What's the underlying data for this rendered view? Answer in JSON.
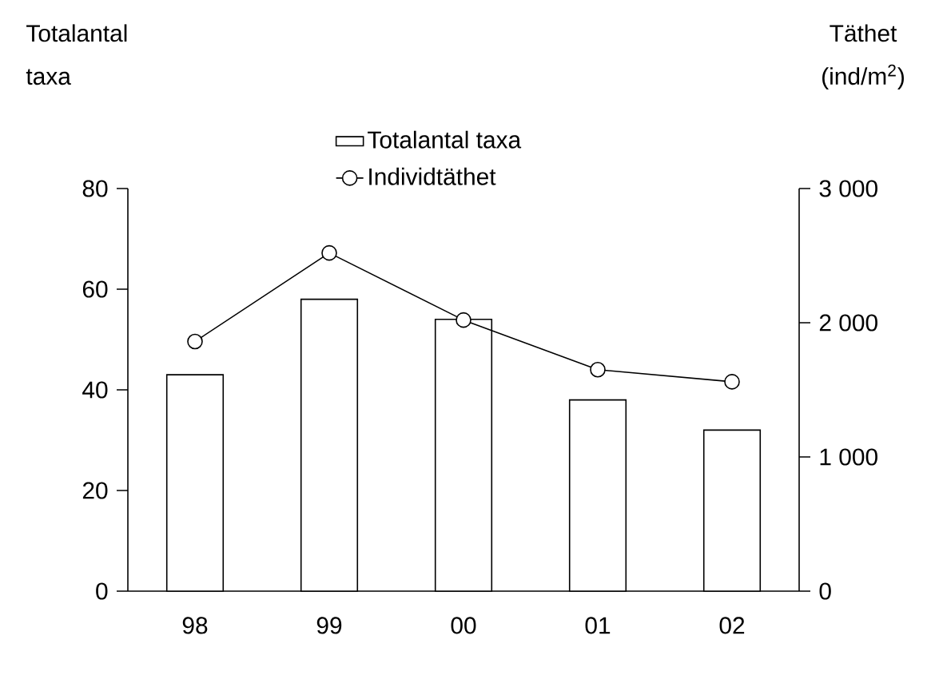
{
  "chart_data": {
    "type": "bar",
    "ylabel": "Totalantal taxa",
    "y2label": "Täthet (ind/m$^{2}$)",
    "categories": [
      "98",
      "99",
      "00",
      "01",
      "02"
    ],
    "series": [
      {
        "name": "Totalantal taxa",
        "color": "#ffffff",
        "values": [
          43,
          58,
          54,
          38,
          32
        ]
      },
      {
        "name": "Individtäthet",
        "type": "line",
        "axis": "y2",
        "color": "#000000",
        "values": [
          1860,
          2520,
          2020,
          1650,
          1560
        ]
      }
    ],
    "ylim": [
      0,
      80
    ],
    "yticks": [
      0,
      20,
      40,
      60,
      80
    ],
    "y2lim": [
      0,
      3000
    ],
    "y2ticks": [
      0,
      {
        "value": 1000,
        "label": "1 000"
      },
      {
        "value": 2000,
        "label": "2 000"
      },
      {
        "value": 3000,
        "label": "3 000"
      }
    ],
    "marker": "circle",
    "line_style": "solid",
    "legend": "top"
  }
}
